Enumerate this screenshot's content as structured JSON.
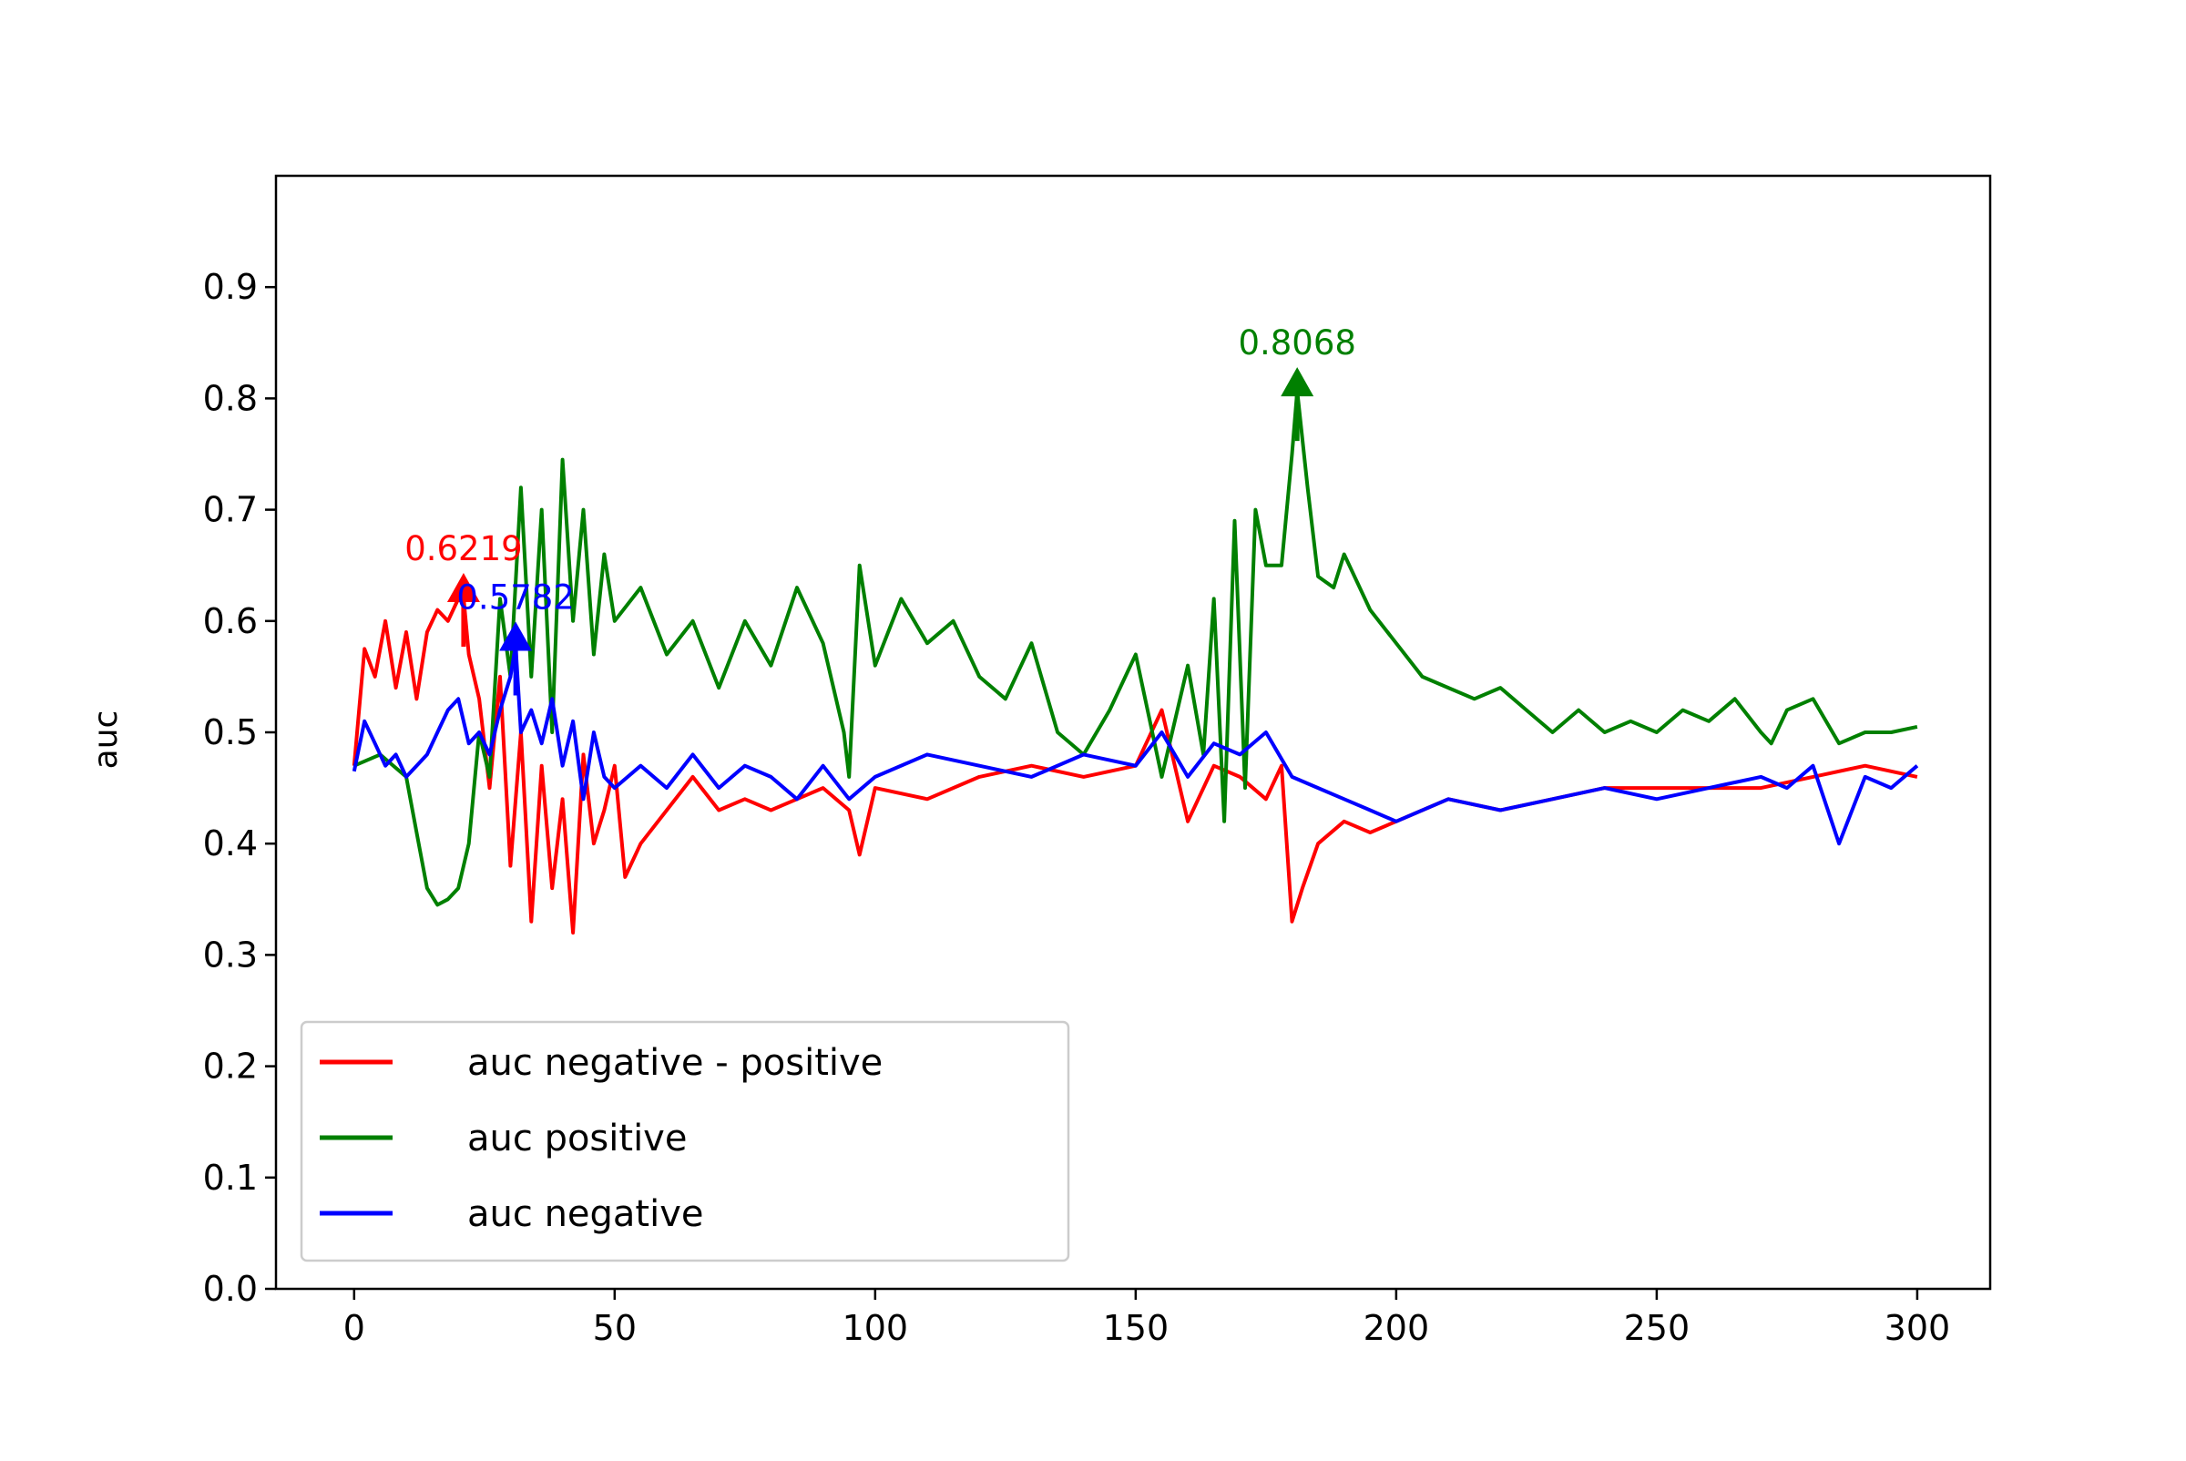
{
  "chart_data": {
    "type": "line",
    "title": "",
    "xlabel": "",
    "ylabel": "auc",
    "xlim": [
      -15,
      314
    ],
    "ylim": [
      0.0,
      1.0
    ],
    "xticks": [
      0,
      50,
      100,
      150,
      200,
      250,
      300
    ],
    "yticks": [
      0.0,
      0.1,
      0.2,
      0.3,
      0.4,
      0.5,
      0.6,
      0.7,
      0.8,
      0.9
    ],
    "grid": false,
    "legend_position": "lower-left",
    "series": [
      {
        "name": "auc negative - positive",
        "color": "#ff0000",
        "x": [
          0,
          2,
          4,
          6,
          8,
          10,
          12,
          14,
          16,
          18,
          20,
          21,
          22,
          24,
          26,
          28,
          30,
          32,
          34,
          36,
          38,
          40,
          42,
          44,
          46,
          48,
          50,
          52,
          55,
          60,
          65,
          70,
          75,
          80,
          85,
          90,
          95,
          97,
          100,
          110,
          120,
          130,
          140,
          150,
          155,
          160,
          165,
          170,
          175,
          178,
          180,
          182,
          185,
          190,
          195,
          200,
          210,
          220,
          230,
          240,
          250,
          260,
          270,
          280,
          290,
          300
        ],
        "y": [
          0.47,
          0.575,
          0.55,
          0.6,
          0.54,
          0.59,
          0.53,
          0.59,
          0.61,
          0.6,
          0.62,
          0.6219,
          0.57,
          0.53,
          0.45,
          0.55,
          0.38,
          0.5,
          0.33,
          0.47,
          0.36,
          0.44,
          0.32,
          0.48,
          0.4,
          0.43,
          0.47,
          0.37,
          0.4,
          0.43,
          0.46,
          0.43,
          0.44,
          0.43,
          0.44,
          0.45,
          0.43,
          0.39,
          0.45,
          0.44,
          0.46,
          0.47,
          0.46,
          0.47,
          0.52,
          0.42,
          0.47,
          0.46,
          0.44,
          0.47,
          0.33,
          0.36,
          0.4,
          0.42,
          0.41,
          0.42,
          0.44,
          0.43,
          0.44,
          0.45,
          0.45,
          0.45,
          0.45,
          0.46,
          0.47,
          0.46
        ]
      },
      {
        "name": "auc positive",
        "color": "#008000",
        "x": [
          0,
          5,
          10,
          12,
          14,
          16,
          18,
          20,
          22,
          24,
          26,
          28,
          30,
          32,
          34,
          36,
          38,
          40,
          42,
          44,
          46,
          48,
          50,
          55,
          60,
          65,
          70,
          75,
          80,
          85,
          90,
          94,
          95,
          97,
          100,
          105,
          110,
          115,
          120,
          125,
          130,
          135,
          140,
          145,
          150,
          155,
          160,
          163,
          165,
          167,
          169,
          171,
          173,
          175,
          178,
          180,
          181,
          183,
          185,
          188,
          190,
          195,
          200,
          205,
          210,
          215,
          220,
          225,
          230,
          235,
          240,
          245,
          250,
          255,
          260,
          265,
          270,
          272,
          275,
          280,
          285,
          290,
          295,
          300
        ],
        "y": [
          0.47,
          0.48,
          0.46,
          0.41,
          0.36,
          0.345,
          0.35,
          0.36,
          0.4,
          0.5,
          0.46,
          0.62,
          0.55,
          0.72,
          0.55,
          0.7,
          0.5,
          0.745,
          0.6,
          0.7,
          0.57,
          0.66,
          0.6,
          0.63,
          0.57,
          0.6,
          0.54,
          0.6,
          0.56,
          0.63,
          0.58,
          0.5,
          0.46,
          0.65,
          0.56,
          0.62,
          0.58,
          0.6,
          0.55,
          0.53,
          0.58,
          0.5,
          0.48,
          0.52,
          0.57,
          0.46,
          0.56,
          0.48,
          0.62,
          0.42,
          0.69,
          0.45,
          0.7,
          0.65,
          0.65,
          0.75,
          0.8068,
          0.72,
          0.64,
          0.63,
          0.66,
          0.61,
          0.58,
          0.55,
          0.54,
          0.53,
          0.54,
          0.52,
          0.5,
          0.52,
          0.5,
          0.51,
          0.5,
          0.52,
          0.51,
          0.53,
          0.5,
          0.49,
          0.52,
          0.53,
          0.49,
          0.5,
          0.5,
          0.505
        ]
      },
      {
        "name": "auc negative",
        "color": "#0000ff",
        "x": [
          0,
          2,
          4,
          6,
          8,
          10,
          12,
          14,
          16,
          18,
          20,
          22,
          24,
          26,
          28,
          30,
          31,
          32,
          34,
          36,
          38,
          40,
          42,
          44,
          46,
          48,
          50,
          55,
          60,
          65,
          70,
          75,
          80,
          85,
          90,
          95,
          100,
          110,
          120,
          130,
          140,
          150,
          155,
          160,
          165,
          170,
          175,
          180,
          185,
          190,
          195,
          200,
          210,
          220,
          230,
          240,
          250,
          260,
          270,
          275,
          280,
          285,
          290,
          295,
          300
        ],
        "y": [
          0.465,
          0.51,
          0.49,
          0.47,
          0.48,
          0.46,
          0.47,
          0.48,
          0.5,
          0.52,
          0.53,
          0.49,
          0.5,
          0.48,
          0.52,
          0.55,
          0.5782,
          0.5,
          0.52,
          0.49,
          0.53,
          0.47,
          0.51,
          0.44,
          0.5,
          0.46,
          0.45,
          0.47,
          0.45,
          0.48,
          0.45,
          0.47,
          0.46,
          0.44,
          0.47,
          0.44,
          0.46,
          0.48,
          0.47,
          0.46,
          0.48,
          0.47,
          0.5,
          0.46,
          0.49,
          0.48,
          0.5,
          0.46,
          0.45,
          0.44,
          0.43,
          0.42,
          0.44,
          0.43,
          0.44,
          0.45,
          0.44,
          0.45,
          0.46,
          0.45,
          0.47,
          0.4,
          0.46,
          0.45,
          0.47
        ]
      }
    ],
    "annotations": [
      {
        "text": "0.6219",
        "x": 21,
        "y": 0.6219,
        "color": "#ff0000",
        "arrow": "up"
      },
      {
        "text": "0.5782",
        "x": 31,
        "y": 0.5782,
        "color": "#0000ff",
        "arrow": "up"
      },
      {
        "text": "0.8068",
        "x": 181,
        "y": 0.8068,
        "color": "#008000",
        "arrow": "up"
      }
    ]
  }
}
